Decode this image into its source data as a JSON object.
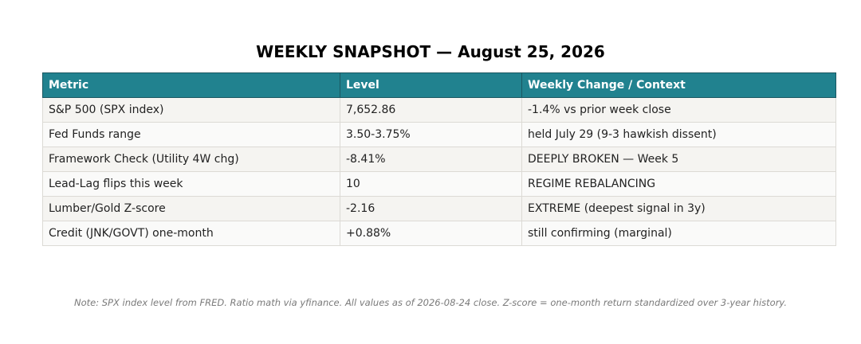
{
  "title": "WEEKLY SNAPSHOT — August 25, 2026",
  "table": {
    "headers": [
      "Metric",
      "Level",
      "Weekly Change / Context"
    ],
    "rows": [
      [
        "S&P 500 (SPX index)",
        "7,652.86",
        "-1.4% vs prior week close"
      ],
      [
        "Fed Funds range",
        "3.50-3.75%",
        "held July 29 (9-3 hawkish dissent)"
      ],
      [
        "Framework Check (Utility 4W chg)",
        "-8.41%",
        "DEEPLY BROKEN — Week 5"
      ],
      [
        "Lead-Lag flips this week",
        "10",
        "REGIME REBALANCING"
      ],
      [
        "Lumber/Gold Z-score",
        "-2.16",
        "EXTREME (deepest signal in 3y)"
      ],
      [
        "Credit (JNK/GOVT) one-month",
        "+0.88%",
        "still confirming (marginal)"
      ]
    ]
  },
  "note": "Note: SPX index level from FRED. Ratio math via yfinance. All values as of 2026-08-24 close. Z-score = one-month return standardized over 3-year history.",
  "colors": {
    "header_bg": "#21828f",
    "header_text": "#ffffff",
    "row_odd": "#f5f4f1",
    "row_even": "#fafaf9"
  }
}
